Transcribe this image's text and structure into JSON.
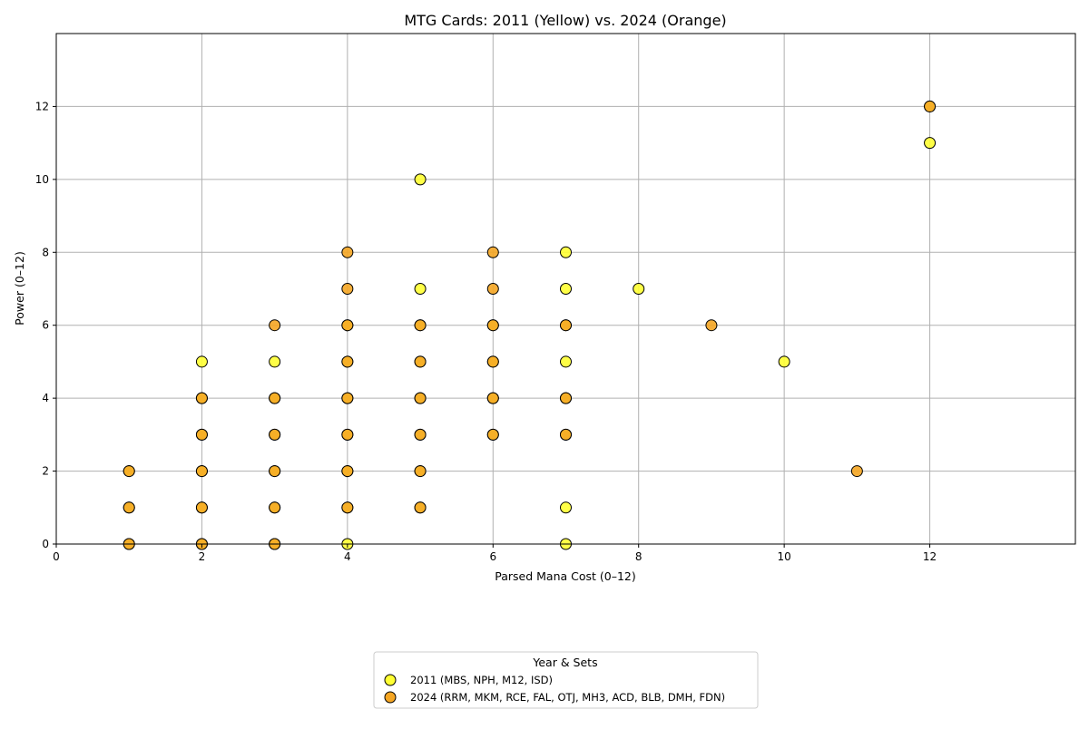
{
  "chart_data": {
    "type": "scatter",
    "title": "MTG Cards: 2011 (Yellow) vs. 2024 (Orange)",
    "xlabel": "Parsed Mana Cost (0–12)",
    "ylabel": "Power (0–12)",
    "xlim": [
      0,
      14
    ],
    "ylim": [
      0,
      14
    ],
    "xticks": [
      0,
      2,
      4,
      6,
      8,
      10,
      12
    ],
    "yticks": [
      0,
      2,
      4,
      6,
      8,
      10,
      12
    ],
    "grid": true,
    "legend": {
      "title": "Year & Sets",
      "placement": "bottom-center"
    },
    "series": [
      {
        "name": "2011 (MBS, NPH, M12, ISD)",
        "color": "#ffff33",
        "points": [
          [
            1,
            0
          ],
          [
            1,
            1
          ],
          [
            1,
            2
          ],
          [
            2,
            0
          ],
          [
            2,
            1
          ],
          [
            2,
            2
          ],
          [
            2,
            3
          ],
          [
            2,
            4
          ],
          [
            2,
            5
          ],
          [
            3,
            0
          ],
          [
            3,
            1
          ],
          [
            3,
            2
          ],
          [
            3,
            3
          ],
          [
            3,
            4
          ],
          [
            3,
            5
          ],
          [
            4,
            0
          ],
          [
            4,
            1
          ],
          [
            4,
            2
          ],
          [
            4,
            3
          ],
          [
            4,
            4
          ],
          [
            4,
            5
          ],
          [
            4,
            6
          ],
          [
            5,
            1
          ],
          [
            5,
            2
          ],
          [
            5,
            3
          ],
          [
            5,
            4
          ],
          [
            5,
            5
          ],
          [
            5,
            6
          ],
          [
            5,
            7
          ],
          [
            5,
            10
          ],
          [
            6,
            3
          ],
          [
            6,
            4
          ],
          [
            6,
            5
          ],
          [
            6,
            6
          ],
          [
            7,
            0
          ],
          [
            7,
            1
          ],
          [
            7,
            3
          ],
          [
            7,
            4
          ],
          [
            7,
            5
          ],
          [
            7,
            6
          ],
          [
            7,
            7
          ],
          [
            7,
            8
          ],
          [
            8,
            7
          ],
          [
            10,
            5
          ],
          [
            12,
            11
          ],
          [
            12,
            12
          ]
        ]
      },
      {
        "name": "2024 (RRM, MKM, RCE, FAL, OTJ, MH3, ACD, BLB, DMH, FDN)",
        "color": "#f5a623",
        "points": [
          [
            1,
            0
          ],
          [
            1,
            1
          ],
          [
            1,
            2
          ],
          [
            2,
            0
          ],
          [
            2,
            1
          ],
          [
            2,
            2
          ],
          [
            2,
            3
          ],
          [
            2,
            4
          ],
          [
            3,
            0
          ],
          [
            3,
            1
          ],
          [
            3,
            2
          ],
          [
            3,
            3
          ],
          [
            3,
            4
          ],
          [
            3,
            6
          ],
          [
            4,
            1
          ],
          [
            4,
            2
          ],
          [
            4,
            3
          ],
          [
            4,
            4
          ],
          [
            4,
            5
          ],
          [
            4,
            6
          ],
          [
            4,
            7
          ],
          [
            4,
            8
          ],
          [
            5,
            1
          ],
          [
            5,
            2
          ],
          [
            5,
            3
          ],
          [
            5,
            4
          ],
          [
            5,
            5
          ],
          [
            5,
            6
          ],
          [
            6,
            3
          ],
          [
            6,
            4
          ],
          [
            6,
            5
          ],
          [
            6,
            6
          ],
          [
            6,
            7
          ],
          [
            6,
            8
          ],
          [
            7,
            3
          ],
          [
            7,
            4
          ],
          [
            7,
            6
          ],
          [
            9,
            6
          ],
          [
            11,
            2
          ],
          [
            12,
            12
          ]
        ]
      }
    ]
  }
}
